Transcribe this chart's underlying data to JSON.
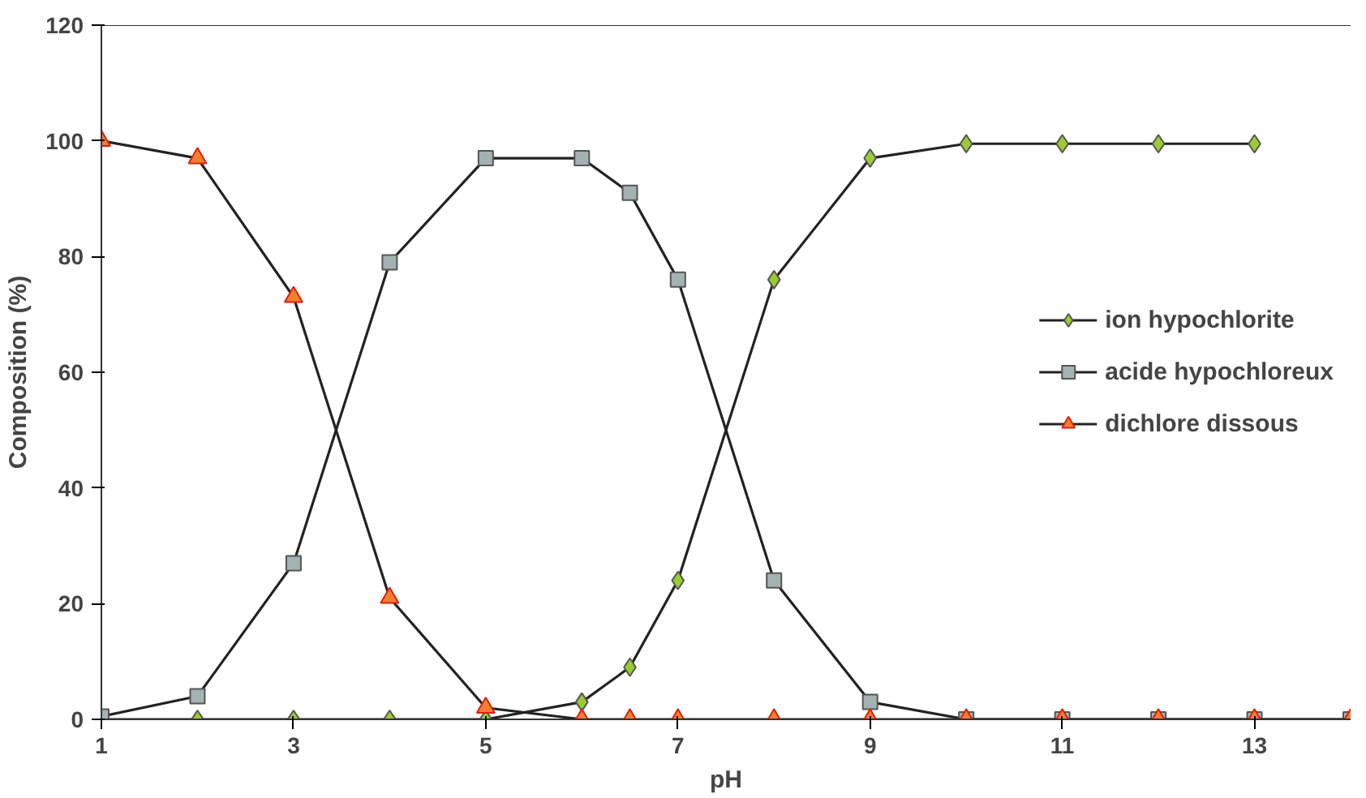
{
  "chart_data": {
    "type": "line",
    "xlabel": "pH",
    "ylabel": "Composition (%)",
    "xlim": [
      1,
      14
    ],
    "ylim": [
      0,
      120
    ],
    "xticks": [
      1,
      3,
      5,
      7,
      9,
      11,
      13
    ],
    "yticks": [
      0,
      20,
      40,
      60,
      80,
      100,
      120
    ],
    "grid": false,
    "legend": "right",
    "line_style": "solid",
    "series": [
      {
        "name": "ion hypochlorite",
        "color": "#99cc33",
        "marker": "diamond",
        "x": [
          1,
          2,
          3,
          4,
          5,
          6,
          6.5,
          7,
          8,
          9,
          10,
          11,
          12,
          13
        ],
        "values": [
          0,
          0,
          0,
          0,
          0,
          3,
          9,
          24,
          76,
          97,
          99.5,
          99.5,
          99.5,
          99.5
        ]
      },
      {
        "name": "acide hypochloreux",
        "color": "#a3b3b3",
        "marker": "square",
        "x": [
          1,
          2,
          3,
          4,
          5,
          6,
          6.5,
          7,
          8,
          9,
          10,
          11,
          12,
          13,
          14
        ],
        "values": [
          0.5,
          4,
          27,
          79,
          97,
          97,
          91,
          76,
          24,
          3,
          0,
          0,
          0,
          0,
          0
        ]
      },
      {
        "name": "dichlore dissous",
        "color": "#f08030",
        "marker": "triangle",
        "x": [
          1,
          2,
          3,
          4,
          5,
          6,
          6.5,
          7,
          8,
          9,
          10,
          11,
          12,
          13,
          14
        ],
        "values": [
          100,
          97,
          73,
          21,
          2,
          0,
          0,
          0,
          0,
          0,
          0,
          0,
          0,
          0,
          0
        ]
      }
    ]
  }
}
